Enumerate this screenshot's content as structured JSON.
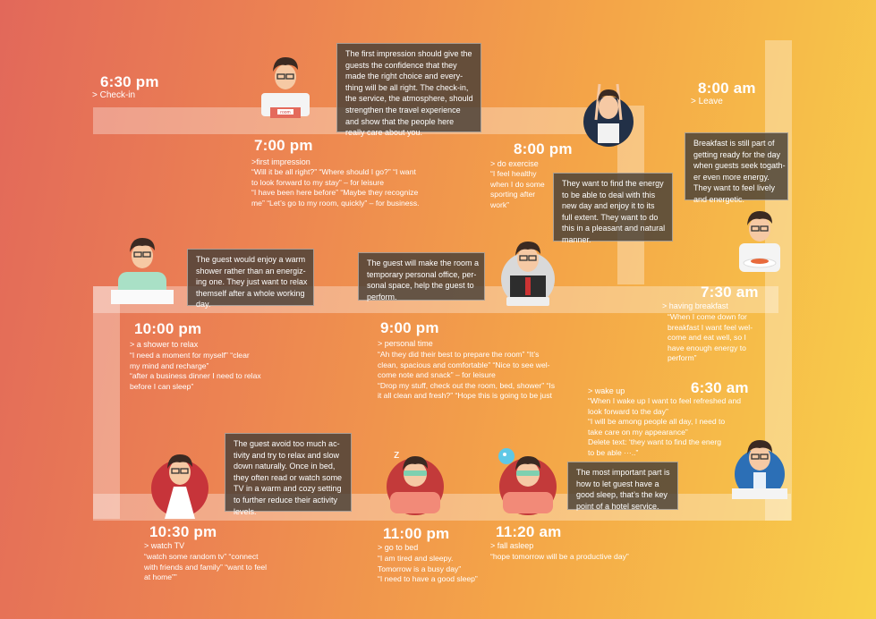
{
  "stages": [
    {
      "id": "checkin",
      "time": "6:30 pm",
      "label": "> Check-in"
    },
    {
      "id": "first-impression",
      "time": "7:00 pm",
      "label": ">first impression",
      "quote": [
        "“Will it be all right?”  “Where should I go?” “I want",
        "to look forward to my stay” – for leisure",
        "“I have been here before” “Maybe they recognize",
        "me” “Let’s go to my room, quickly” – for business."
      ]
    },
    {
      "id": "exercise",
      "time": "8:00 pm",
      "label": "> do exercise",
      "quote": [
        "“I feel healthy",
        "when I do some",
        "sporting after",
        "work”"
      ]
    },
    {
      "id": "leave",
      "time": "8:00 am",
      "label": "> Leave"
    },
    {
      "id": "shower",
      "time": "10:00 pm",
      "label": "> a shower to relax",
      "quote": [
        "“I need a moment for myself” “clear",
        "my mind and recharge”",
        "“after a business dinner I need to relax",
        "before I can sleep”"
      ]
    },
    {
      "id": "personal-time",
      "time": "9:00 pm",
      "label": "> personal time",
      "quote": [
        "“Ah they did their best to prepare the room” “It’s",
        "clean, spacious and comfortable” “Nice to see wel-",
        "come note and snack” – for leisure",
        "“Drop my stuff, check out the room, bed, shower” “Is",
        "it all clean and fresh?” “Hope this is going to be just"
      ]
    },
    {
      "id": "breakfast",
      "time": "7:30 am",
      "label": "> having breakfast",
      "quote": [
        "“When I come down for",
        "breakfast I want feel wel-",
        "come and eat well, so I",
        "have enough energy to",
        "perform”"
      ]
    },
    {
      "id": "wake-up",
      "time": "6:30 am",
      "label": "> wake up",
      "quote": [
        "“When I wake up I want to feel refreshed and",
        "look forward to the day”",
        "“I will be among people all day, I need to",
        "take care on my appearance”",
        "Delete text:  ‘they want to find the energ",
        "to be able ···..”"
      ]
    },
    {
      "id": "tv",
      "time": "10:30 pm",
      "label": "> watch TV",
      "quote": [
        "“watch some random tv” “connect",
        "with friends and family” “want to feel",
        "at home””"
      ]
    },
    {
      "id": "bed",
      "time": "11:00 pm",
      "label": "> go to bed",
      "quote": [
        "  “I am tired and sleepy.",
        "Tomorrow is a busy day”",
        "“I need to have a good sleep”"
      ]
    },
    {
      "id": "asleep",
      "time": "11:20 am",
      "label": "> fall asleep",
      "quote": [
        "“hope tomorrow will be a productive day”"
      ]
    }
  ],
  "notes": [
    {
      "id": "first-impression",
      "lines": [
        "The first impression should give the",
        "guests the confidence that they",
        "made the right choice and every-",
        "thing will be all right. The check-in,",
        "the service, the atmosphere, should",
        "strengthen the travel experience",
        "and show that the people here",
        "really care about you."
      ]
    },
    {
      "id": "energy",
      "lines": [
        "They want to find the energy",
        "to be able to deal with this",
        "new day and enjoy it to its",
        "full extent. They want to do",
        "this in a pleasant and natural",
        "manner."
      ]
    },
    {
      "id": "breakfast",
      "lines": [
        "Breakfast is still part of",
        "getting ready for the day",
        "when guests seek togath-",
        "er even more energy.",
        "They want to feel lively",
        "and energetic."
      ]
    },
    {
      "id": "shower",
      "lines": [
        "The guest would enjoy a warm",
        "shower rather than an energiz-",
        "ing one. They just want to relax",
        "themself after a whole working",
        "day."
      ]
    },
    {
      "id": "room",
      "lines": [
        "The guest will make the room a",
        "temporary personal office, per-",
        "sonal space, help the guest to",
        "perform."
      ]
    },
    {
      "id": "tv",
      "lines": [
        "The guest avoid too much ac-",
        "tivity and try to relax and slow",
        "down naturally. Once in bed,",
        "they often read or watch some",
        "TV in a warm and cozy setting",
        "to further reduce their activity",
        "levels."
      ]
    },
    {
      "id": "sleep",
      "lines": [
        "The most important part is",
        "how to let guest have a",
        "good sleep, that’s the key",
        "point of a hotel service."
      ]
    }
  ],
  "icons": {
    "room_sign": "room",
    "sleep_symbol": "z"
  },
  "colors": {
    "background_start": "#e2685a",
    "background_end": "#f8d04a",
    "path": "#ffffff",
    "note_bg": "#463e37",
    "hair": "#3b2a22",
    "skin": "#f6c9a4"
  }
}
